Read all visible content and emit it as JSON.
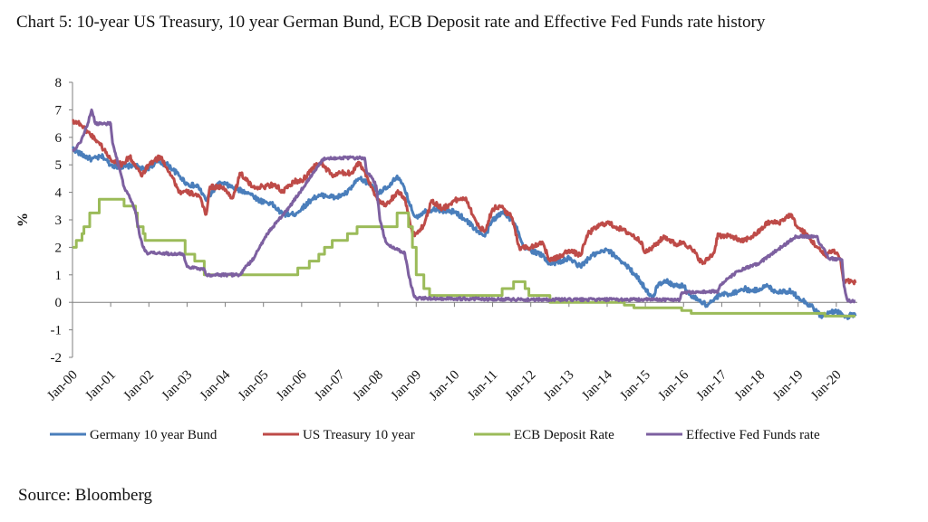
{
  "title": "Chart 5: 10-year US Treasury, 10 year German Bund, ECB Deposit rate and Effective Fed Funds rate history",
  "source": "Source: Bloomberg",
  "chart_data": {
    "type": "line",
    "title": "Chart 5: 10-year US Treasury, 10 year German Bund, ECB Deposit rate and Effective Fed Funds rate history",
    "xlabel": "",
    "ylabel": "%",
    "x_ticks": [
      "Jan-00",
      "Jan-01",
      "Jan-02",
      "Jan-03",
      "Jan-04",
      "Jan-05",
      "Jan-06",
      "Jan-07",
      "Jan-08",
      "Jan-09",
      "Jan-10",
      "Jan-11",
      "Jan-12",
      "Jan-13",
      "Jan-14",
      "Jan-15",
      "Jan-16",
      "Jan-17",
      "Jan-18",
      "Jan-19",
      "Jan-20"
    ],
    "xlim": [
      2000.0,
      2020.55
    ],
    "ylim": [
      -2,
      8
    ],
    "y_ticks": [
      -2,
      -1,
      0,
      1,
      2,
      3,
      4,
      5,
      6,
      7,
      8
    ],
    "grid": false,
    "legend_position": "bottom",
    "series": [
      {
        "name": "Germany 10 year Bund",
        "color": "#4a7ebb",
        "points": [
          [
            2000.0,
            5.6
          ],
          [
            2000.2,
            5.4
          ],
          [
            2000.5,
            5.2
          ],
          [
            2000.8,
            5.3
          ],
          [
            2001.0,
            5.0
          ],
          [
            2001.3,
            4.9
          ],
          [
            2001.6,
            5.0
          ],
          [
            2001.9,
            4.8
          ],
          [
            2002.2,
            5.1
          ],
          [
            2002.5,
            5.0
          ],
          [
            2002.8,
            4.6
          ],
          [
            2003.0,
            4.3
          ],
          [
            2003.3,
            4.2
          ],
          [
            2003.5,
            3.7
          ],
          [
            2003.8,
            4.3
          ],
          [
            2004.0,
            4.3
          ],
          [
            2004.3,
            4.1
          ],
          [
            2004.6,
            4.0
          ],
          [
            2004.9,
            3.7
          ],
          [
            2005.2,
            3.6
          ],
          [
            2005.5,
            3.2
          ],
          [
            2005.8,
            3.2
          ],
          [
            2006.0,
            3.4
          ],
          [
            2006.3,
            3.8
          ],
          [
            2006.6,
            3.9
          ],
          [
            2006.9,
            3.8
          ],
          [
            2007.2,
            4.0
          ],
          [
            2007.5,
            4.5
          ],
          [
            2007.8,
            4.3
          ],
          [
            2008.0,
            4.0
          ],
          [
            2008.3,
            4.2
          ],
          [
            2008.5,
            4.6
          ],
          [
            2008.7,
            4.1
          ],
          [
            2008.9,
            3.3
          ],
          [
            2009.0,
            3.1
          ],
          [
            2009.2,
            3.3
          ],
          [
            2009.5,
            3.4
          ],
          [
            2009.8,
            3.3
          ],
          [
            2010.0,
            3.3
          ],
          [
            2010.3,
            3.0
          ],
          [
            2010.6,
            2.6
          ],
          [
            2010.8,
            2.4
          ],
          [
            2011.0,
            3.0
          ],
          [
            2011.3,
            3.3
          ],
          [
            2011.6,
            2.8
          ],
          [
            2011.8,
            2.0
          ],
          [
            2012.0,
            1.9
          ],
          [
            2012.3,
            1.7
          ],
          [
            2012.5,
            1.4
          ],
          [
            2012.8,
            1.5
          ],
          [
            2013.0,
            1.6
          ],
          [
            2013.3,
            1.3
          ],
          [
            2013.6,
            1.7
          ],
          [
            2013.8,
            1.8
          ],
          [
            2014.0,
            1.9
          ],
          [
            2014.3,
            1.6
          ],
          [
            2014.6,
            1.2
          ],
          [
            2014.8,
            0.9
          ],
          [
            2015.0,
            0.5
          ],
          [
            2015.2,
            0.1
          ],
          [
            2015.3,
            0.6
          ],
          [
            2015.5,
            0.8
          ],
          [
            2015.8,
            0.6
          ],
          [
            2016.0,
            0.6
          ],
          [
            2016.2,
            0.2
          ],
          [
            2016.4,
            0.1
          ],
          [
            2016.6,
            -0.1
          ],
          [
            2016.8,
            0.1
          ],
          [
            2017.0,
            0.3
          ],
          [
            2017.2,
            0.3
          ],
          [
            2017.4,
            0.4
          ],
          [
            2017.6,
            0.5
          ],
          [
            2017.8,
            0.4
          ],
          [
            2018.0,
            0.5
          ],
          [
            2018.2,
            0.6
          ],
          [
            2018.4,
            0.4
          ],
          [
            2018.6,
            0.4
          ],
          [
            2018.8,
            0.4
          ],
          [
            2019.0,
            0.2
          ],
          [
            2019.2,
            0.0
          ],
          [
            2019.4,
            -0.2
          ],
          [
            2019.6,
            -0.5
          ],
          [
            2019.8,
            -0.4
          ],
          [
            2020.0,
            -0.3
          ],
          [
            2020.2,
            -0.5
          ],
          [
            2020.3,
            -0.6
          ],
          [
            2020.4,
            -0.4
          ],
          [
            2020.5,
            -0.5
          ]
        ]
      },
      {
        "name": "US Treasury 10 year",
        "color": "#be4b48",
        "points": [
          [
            2000.0,
            6.6
          ],
          [
            2000.2,
            6.5
          ],
          [
            2000.4,
            6.2
          ],
          [
            2000.7,
            5.8
          ],
          [
            2001.0,
            5.2
          ],
          [
            2001.3,
            5.0
          ],
          [
            2001.5,
            5.3
          ],
          [
            2001.8,
            4.6
          ],
          [
            2002.0,
            5.0
          ],
          [
            2002.3,
            5.3
          ],
          [
            2002.6,
            4.6
          ],
          [
            2002.8,
            4.0
          ],
          [
            2003.0,
            4.0
          ],
          [
            2003.3,
            3.9
          ],
          [
            2003.5,
            3.2
          ],
          [
            2003.6,
            4.2
          ],
          [
            2003.9,
            4.2
          ],
          [
            2004.2,
            3.8
          ],
          [
            2004.4,
            4.7
          ],
          [
            2004.7,
            4.2
          ],
          [
            2005.0,
            4.2
          ],
          [
            2005.3,
            4.3
          ],
          [
            2005.5,
            4.0
          ],
          [
            2005.8,
            4.4
          ],
          [
            2006.0,
            4.4
          ],
          [
            2006.3,
            4.9
          ],
          [
            2006.5,
            5.1
          ],
          [
            2006.8,
            4.6
          ],
          [
            2007.0,
            4.7
          ],
          [
            2007.3,
            4.7
          ],
          [
            2007.5,
            5.1
          ],
          [
            2007.7,
            4.6
          ],
          [
            2008.0,
            3.7
          ],
          [
            2008.2,
            3.5
          ],
          [
            2008.5,
            4.0
          ],
          [
            2008.7,
            3.8
          ],
          [
            2008.9,
            2.5
          ],
          [
            2009.0,
            2.5
          ],
          [
            2009.2,
            2.8
          ],
          [
            2009.4,
            3.7
          ],
          [
            2009.7,
            3.4
          ],
          [
            2010.0,
            3.7
          ],
          [
            2010.3,
            3.8
          ],
          [
            2010.6,
            2.8
          ],
          [
            2010.8,
            2.6
          ],
          [
            2011.0,
            3.4
          ],
          [
            2011.2,
            3.5
          ],
          [
            2011.5,
            3.1
          ],
          [
            2011.7,
            2.0
          ],
          [
            2012.0,
            2.0
          ],
          [
            2012.3,
            2.2
          ],
          [
            2012.5,
            1.5
          ],
          [
            2012.8,
            1.7
          ],
          [
            2013.0,
            1.9
          ],
          [
            2013.3,
            1.7
          ],
          [
            2013.5,
            2.5
          ],
          [
            2013.8,
            2.8
          ],
          [
            2014.0,
            2.9
          ],
          [
            2014.3,
            2.7
          ],
          [
            2014.6,
            2.5
          ],
          [
            2014.9,
            2.2
          ],
          [
            2015.0,
            1.8
          ],
          [
            2015.2,
            2.0
          ],
          [
            2015.5,
            2.4
          ],
          [
            2015.8,
            2.1
          ],
          [
            2016.0,
            2.2
          ],
          [
            2016.3,
            1.8
          ],
          [
            2016.5,
            1.4
          ],
          [
            2016.8,
            1.8
          ],
          [
            2016.9,
            2.5
          ],
          [
            2017.0,
            2.4
          ],
          [
            2017.3,
            2.4
          ],
          [
            2017.5,
            2.2
          ],
          [
            2017.8,
            2.4
          ],
          [
            2018.0,
            2.6
          ],
          [
            2018.2,
            2.9
          ],
          [
            2018.5,
            2.9
          ],
          [
            2018.8,
            3.2
          ],
          [
            2019.0,
            2.7
          ],
          [
            2019.2,
            2.5
          ],
          [
            2019.5,
            2.0
          ],
          [
            2019.7,
            1.7
          ],
          [
            2019.9,
            1.9
          ],
          [
            2020.0,
            1.8
          ],
          [
            2020.1,
            1.6
          ],
          [
            2020.2,
            0.7
          ],
          [
            2020.3,
            0.8
          ],
          [
            2020.5,
            0.7
          ]
        ]
      },
      {
        "name": "ECB Deposit Rate",
        "color": "#9bbb59",
        "points": [
          [
            2000.0,
            2.0
          ],
          [
            2000.1,
            2.25
          ],
          [
            2000.25,
            2.5
          ],
          [
            2000.3,
            2.75
          ],
          [
            2000.45,
            3.25
          ],
          [
            2000.7,
            3.75
          ],
          [
            2001.35,
            3.5
          ],
          [
            2001.65,
            3.25
          ],
          [
            2001.7,
            2.75
          ],
          [
            2001.85,
            2.5
          ],
          [
            2001.9,
            2.25
          ],
          [
            2002.9,
            2.25
          ],
          [
            2002.95,
            1.75
          ],
          [
            2003.2,
            1.5
          ],
          [
            2003.45,
            1.0
          ],
          [
            2005.9,
            1.25
          ],
          [
            2006.2,
            1.5
          ],
          [
            2006.45,
            1.75
          ],
          [
            2006.6,
            2.0
          ],
          [
            2006.8,
            2.25
          ],
          [
            2007.2,
            2.5
          ],
          [
            2007.45,
            2.75
          ],
          [
            2008.5,
            3.25
          ],
          [
            2008.8,
            2.75
          ],
          [
            2008.9,
            2.0
          ],
          [
            2009.0,
            1.0
          ],
          [
            2009.2,
            0.5
          ],
          [
            2009.35,
            0.25
          ],
          [
            2011.25,
            0.5
          ],
          [
            2011.55,
            0.75
          ],
          [
            2011.85,
            0.5
          ],
          [
            2011.95,
            0.25
          ],
          [
            2012.5,
            0.0
          ],
          [
            2014.45,
            -0.1
          ],
          [
            2014.7,
            -0.2
          ],
          [
            2015.95,
            -0.3
          ],
          [
            2016.2,
            -0.4
          ],
          [
            2019.7,
            -0.5
          ],
          [
            2020.5,
            -0.5
          ]
        ]
      },
      {
        "name": "Effective Fed Funds rate",
        "color": "#7d60a0",
        "points": [
          [
            2000.0,
            5.5
          ],
          [
            2000.2,
            5.8
          ],
          [
            2000.4,
            6.5
          ],
          [
            2000.5,
            7.0
          ],
          [
            2000.6,
            6.5
          ],
          [
            2001.0,
            6.5
          ],
          [
            2001.05,
            5.8
          ],
          [
            2001.2,
            5.0
          ],
          [
            2001.35,
            4.2
          ],
          [
            2001.5,
            3.8
          ],
          [
            2001.65,
            3.3
          ],
          [
            2001.75,
            2.5
          ],
          [
            2001.85,
            2.0
          ],
          [
            2001.95,
            1.8
          ],
          [
            2002.9,
            1.75
          ],
          [
            2003.0,
            1.3
          ],
          [
            2003.45,
            1.2
          ],
          [
            2003.5,
            1.0
          ],
          [
            2004.4,
            1.0
          ],
          [
            2004.5,
            1.25
          ],
          [
            2004.7,
            1.5
          ],
          [
            2004.9,
            2.0
          ],
          [
            2005.1,
            2.5
          ],
          [
            2005.4,
            3.0
          ],
          [
            2005.7,
            3.5
          ],
          [
            2005.95,
            4.0
          ],
          [
            2006.2,
            4.5
          ],
          [
            2006.45,
            5.0
          ],
          [
            2006.6,
            5.25
          ],
          [
            2007.65,
            5.25
          ],
          [
            2007.7,
            4.75
          ],
          [
            2007.85,
            4.5
          ],
          [
            2007.95,
            4.25
          ],
          [
            2008.05,
            3.0
          ],
          [
            2008.2,
            2.2
          ],
          [
            2008.35,
            2.0
          ],
          [
            2008.7,
            1.8
          ],
          [
            2008.8,
            1.0
          ],
          [
            2008.95,
            0.2
          ],
          [
            2009.0,
            0.15
          ],
          [
            2012.0,
            0.1
          ],
          [
            2015.9,
            0.1
          ],
          [
            2015.95,
            0.35
          ],
          [
            2016.9,
            0.4
          ],
          [
            2016.95,
            0.6
          ],
          [
            2017.2,
            0.9
          ],
          [
            2017.45,
            1.15
          ],
          [
            2017.95,
            1.4
          ],
          [
            2018.2,
            1.65
          ],
          [
            2018.45,
            1.9
          ],
          [
            2018.7,
            2.15
          ],
          [
            2018.95,
            2.4
          ],
          [
            2019.5,
            2.4
          ],
          [
            2019.55,
            2.15
          ],
          [
            2019.7,
            1.9
          ],
          [
            2019.8,
            1.6
          ],
          [
            2020.15,
            1.55
          ],
          [
            2020.2,
            0.6
          ],
          [
            2020.3,
            0.05
          ],
          [
            2020.5,
            0.05
          ]
        ]
      }
    ]
  }
}
